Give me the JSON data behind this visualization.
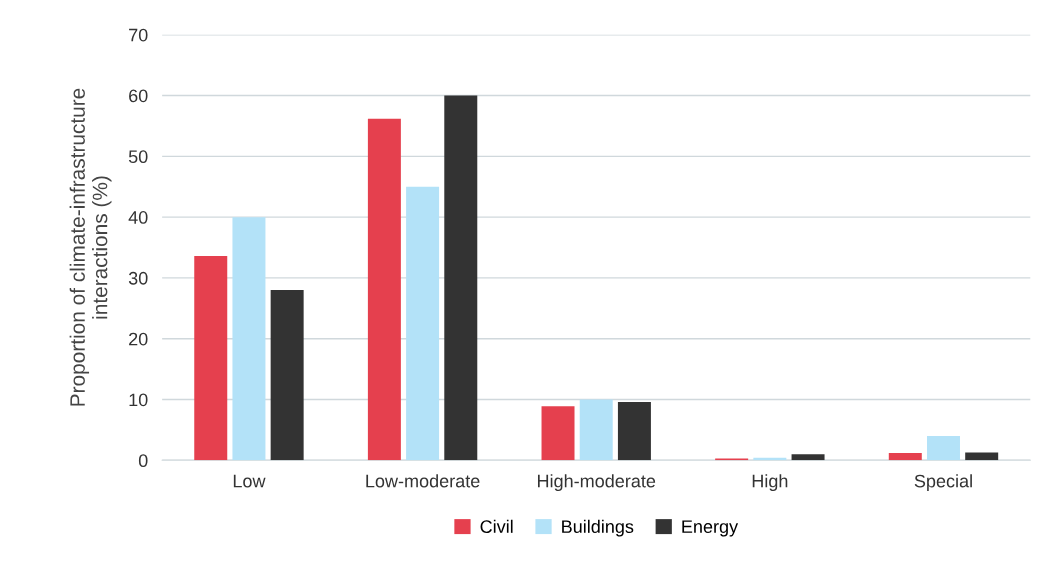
{
  "chart_data": {
    "type": "bar",
    "ylabel": "Proportion of climate-infrastructure\ninteractions (%)",
    "categories": [
      "Low",
      "Low-moderate",
      "High-moderate",
      "High",
      "Special"
    ],
    "series": [
      {
        "name": "Civil",
        "color": "#e5404e",
        "values": [
          33.6,
          56.2,
          8.9,
          0.3,
          1.2
        ]
      },
      {
        "name": "Buildings",
        "color": "#b3e2f8",
        "values": [
          40,
          45,
          10,
          0.4,
          4
        ]
      },
      {
        "name": "Energy",
        "color": "#333333",
        "values": [
          28,
          60,
          9.6,
          1,
          1.3
        ]
      }
    ],
    "ylim": [
      0,
      70
    ],
    "yticks": [
      0,
      10,
      20,
      30,
      40,
      50,
      60,
      70
    ],
    "grid": "y",
    "legend": "bottom"
  }
}
